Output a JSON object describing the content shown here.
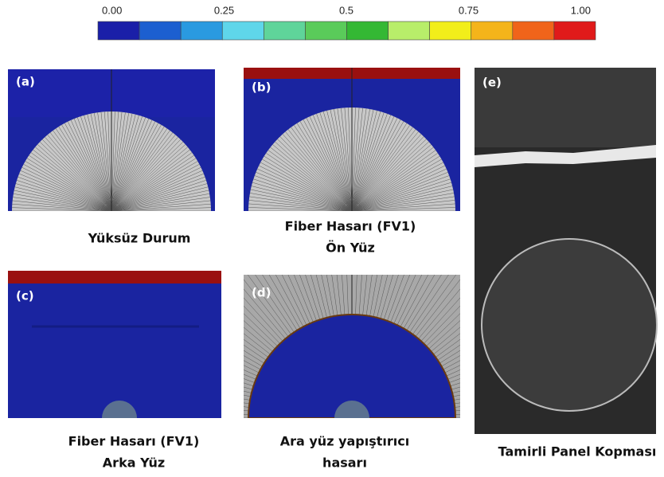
{
  "colorbar": {
    "ticks": [
      "0.00",
      "0.25",
      "0.5",
      "0.75",
      "1.00"
    ],
    "colors": [
      "#1a1fa8",
      "#1c5fd0",
      "#2a9ae0",
      "#5fd6ea",
      "#5fd49a",
      "#5acb5a",
      "#34b834",
      "#b8ee6a",
      "#f2ee1a",
      "#f4b41a",
      "#f0641a",
      "#e01a1a"
    ]
  },
  "panels": [
    {
      "label": "(a)",
      "caption": [
        "Yüksüz Durum"
      ]
    },
    {
      "label": "(b)",
      "caption": [
        "Fiber Hasarı (FV1)",
        "Ön Yüz"
      ]
    },
    {
      "label": "(c)",
      "caption": [
        "Fiber Hasarı (FV1)",
        "Arka Yüz"
      ]
    },
    {
      "label": "(d)",
      "caption": [
        "Ara yüz yapıştırıcı",
        "hasarı"
      ]
    },
    {
      "label": "(e)",
      "caption": [
        "Tamirli Panel Kopması"
      ]
    }
  ]
}
